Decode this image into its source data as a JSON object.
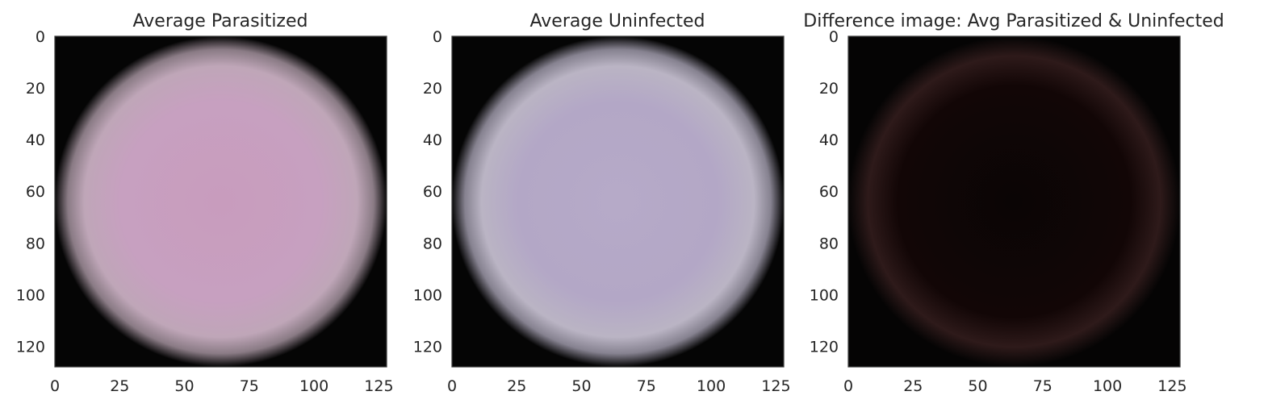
{
  "chart_data": [
    {
      "type": "heatmap",
      "title": "Average Parasitized",
      "xlabel": "",
      "ylabel": "",
      "xlim": [
        0,
        128
      ],
      "ylim": [
        128,
        0
      ],
      "x_ticks": [
        "0",
        "25",
        "50",
        "75",
        "100",
        "125"
      ],
      "y_ticks": [
        "0",
        "20",
        "40",
        "60",
        "80",
        "100",
        "120"
      ],
      "grid": false,
      "content": "circular averaged cell image",
      "background_color": "#050505",
      "cell_color": "#c89cbd",
      "edge_color": "#b8aab4"
    },
    {
      "type": "heatmap",
      "title": "Average Uninfected",
      "xlabel": "",
      "ylabel": "",
      "xlim": [
        0,
        128
      ],
      "ylim": [
        128,
        0
      ],
      "x_ticks": [
        "0",
        "25",
        "50",
        "75",
        "100",
        "125"
      ],
      "y_ticks": [
        "0",
        "20",
        "40",
        "60",
        "80",
        "100",
        "120"
      ],
      "grid": false,
      "content": "circular averaged cell image",
      "background_color": "#050505",
      "cell_color": "#b3a7c6",
      "edge_color": "#c3bcc6"
    },
    {
      "type": "heatmap",
      "title": "Difference image: Avg Parasitized & Uninfected",
      "xlabel": "",
      "ylabel": "",
      "xlim": [
        0,
        128
      ],
      "ylim": [
        128,
        0
      ],
      "x_ticks": [
        "0",
        "25",
        "50",
        "75",
        "100",
        "125"
      ],
      "y_ticks": [
        "0",
        "20",
        "40",
        "60",
        "80",
        "100",
        "120"
      ],
      "grid": false,
      "content": "near-black difference image",
      "background_color": "#050404",
      "cell_color": "#120606",
      "edge_color": "#2e1a1a"
    }
  ]
}
